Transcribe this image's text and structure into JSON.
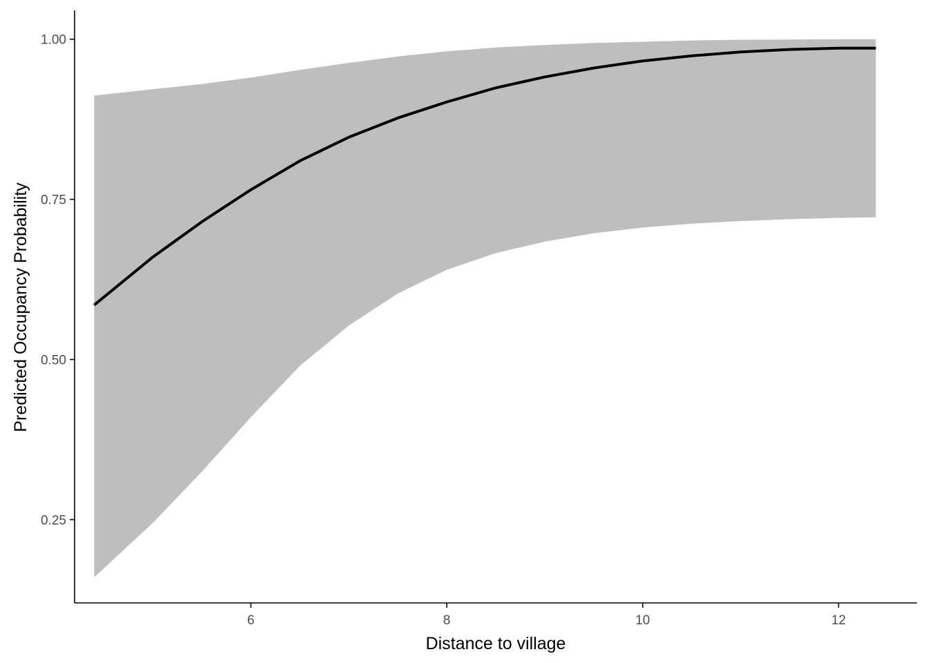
{
  "chart_data": {
    "type": "line",
    "title": "",
    "xlabel": "Distance to village",
    "ylabel": "Predicted Occupancy Probability",
    "xlim": [
      4.2,
      12.8
    ],
    "ylim": [
      0.12,
      1.045
    ],
    "x_ticks": [
      6,
      8,
      10,
      12
    ],
    "x_tick_labels": [
      "6",
      "8",
      "10",
      "12"
    ],
    "y_ticks": [
      0.25,
      0.5,
      0.75,
      1.0
    ],
    "y_tick_labels": [
      "0.25",
      "0.50",
      "0.75",
      "1.00"
    ],
    "grid": false,
    "legend": "none",
    "colors": {
      "line": "#000000",
      "ribbon": "#bebebe",
      "axis": "#000000",
      "tick_text": "#4d4d4d"
    },
    "series": [
      {
        "x": [
          4.4,
          5.0,
          5.5,
          6.0,
          6.5,
          7.0,
          7.5,
          8.0,
          8.5,
          9.0,
          9.5,
          10.0,
          10.5,
          11.0,
          11.5,
          12.0,
          12.38
        ],
        "fit": [
          0.585,
          0.66,
          0.715,
          0.765,
          0.81,
          0.847,
          0.877,
          0.902,
          0.924,
          0.941,
          0.955,
          0.966,
          0.974,
          0.98,
          0.984,
          0.986,
          0.986
        ],
        "lower": [
          0.16,
          0.245,
          0.325,
          0.41,
          0.49,
          0.553,
          0.603,
          0.64,
          0.666,
          0.684,
          0.697,
          0.706,
          0.712,
          0.716,
          0.719,
          0.721,
          0.722
        ],
        "upper": [
          0.912,
          0.922,
          0.93,
          0.94,
          0.952,
          0.963,
          0.973,
          0.981,
          0.987,
          0.991,
          0.994,
          0.996,
          0.998,
          0.999,
          0.9995,
          1.0,
          1.0
        ]
      }
    ]
  }
}
